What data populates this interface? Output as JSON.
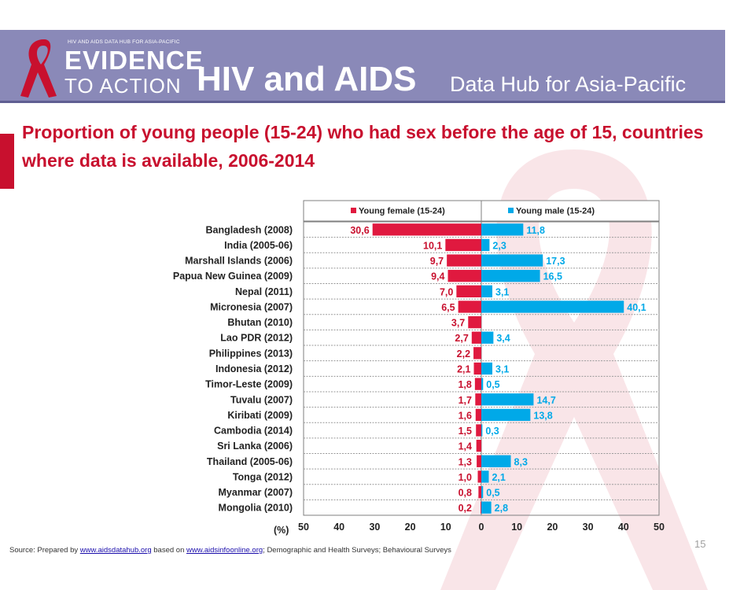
{
  "header": {
    "logo_tagline": "HIV AND AIDS DATA HUB FOR ASIA-PACIFIC",
    "logo_line1": "EVIDENCE",
    "logo_line2": "TO ACTION",
    "brand_main": "HIV and AIDS",
    "brand_sub": "Data Hub for Asia-Pacific"
  },
  "slide": {
    "title": "Proportion of young people (15-24) who had sex before the age of 15, countries where data is available, 2006-2014",
    "page_number": "15"
  },
  "source": {
    "prefix": "Source: Prepared by ",
    "link1": "www.aidsdatahub.org",
    "middle": " based on ",
    "link2": "www.aidsinfoonline.org",
    "suffix": "; Demographic and Health Surveys; Behavioural Surveys"
  },
  "colors": {
    "female": "#e0193f",
    "male": "#00a9e8",
    "accent_red": "#c8102e",
    "header": "#8a89b8"
  },
  "chart_data": {
    "type": "bar",
    "orientation": "horizontal-diverging",
    "categories": [
      "Bangladesh (2008)",
      "India (2005-06)",
      "Marshall Islands (2006)",
      "Papua New Guinea (2009)",
      "Nepal (2011)",
      "Micronesia (2007)",
      "Bhutan (2010)",
      "Lao PDR (2012)",
      "Philippines (2013)",
      "Indonesia (2012)",
      "Timor-Leste (2009)",
      "Tuvalu (2007)",
      "Kiribati (2009)",
      "Cambodia (2014)",
      "Sri Lanka (2006)",
      "Thailand (2005-06)",
      "Tonga (2012)",
      "Myanmar (2007)",
      "Mongolia (2010)"
    ],
    "series": [
      {
        "name": "Young female (15-24)",
        "values": [
          30.6,
          10.1,
          9.7,
          9.4,
          7.0,
          6.5,
          3.7,
          2.7,
          2.2,
          2.1,
          1.8,
          1.7,
          1.6,
          1.5,
          1.4,
          1.3,
          1.0,
          0.8,
          0.2
        ],
        "labels": [
          "30,6",
          "10,1",
          "9,7",
          "9,4",
          "7,0",
          "6,5",
          "3,7",
          "2,7",
          "2,2",
          "2,1",
          "1,8",
          "1,7",
          "1,6",
          "1,5",
          "1,4",
          "1,3",
          "1,0",
          "0,8",
          "0,2"
        ]
      },
      {
        "name": "Young male (15-24)",
        "values": [
          11.8,
          2.3,
          17.3,
          16.5,
          3.1,
          40.1,
          null,
          3.4,
          null,
          3.1,
          0.5,
          14.7,
          13.8,
          0.3,
          null,
          8.3,
          2.1,
          0.5,
          2.8
        ],
        "labels": [
          "11,8",
          "2,3",
          "17,3",
          "16,5",
          "3,1",
          "40,1",
          null,
          "3,4",
          null,
          "3,1",
          "0,5",
          "14,7",
          "13,8",
          "0,3",
          null,
          "8,3",
          "2,1",
          "0,5",
          "2,8"
        ]
      }
    ],
    "x_unit_label": "(%)",
    "xlim": [
      -50,
      50
    ],
    "x_ticks": [
      "50",
      "40",
      "30",
      "20",
      "10",
      "0",
      "10",
      "20",
      "30",
      "40",
      "50"
    ],
    "legend": "top",
    "grid": "horizontal"
  }
}
